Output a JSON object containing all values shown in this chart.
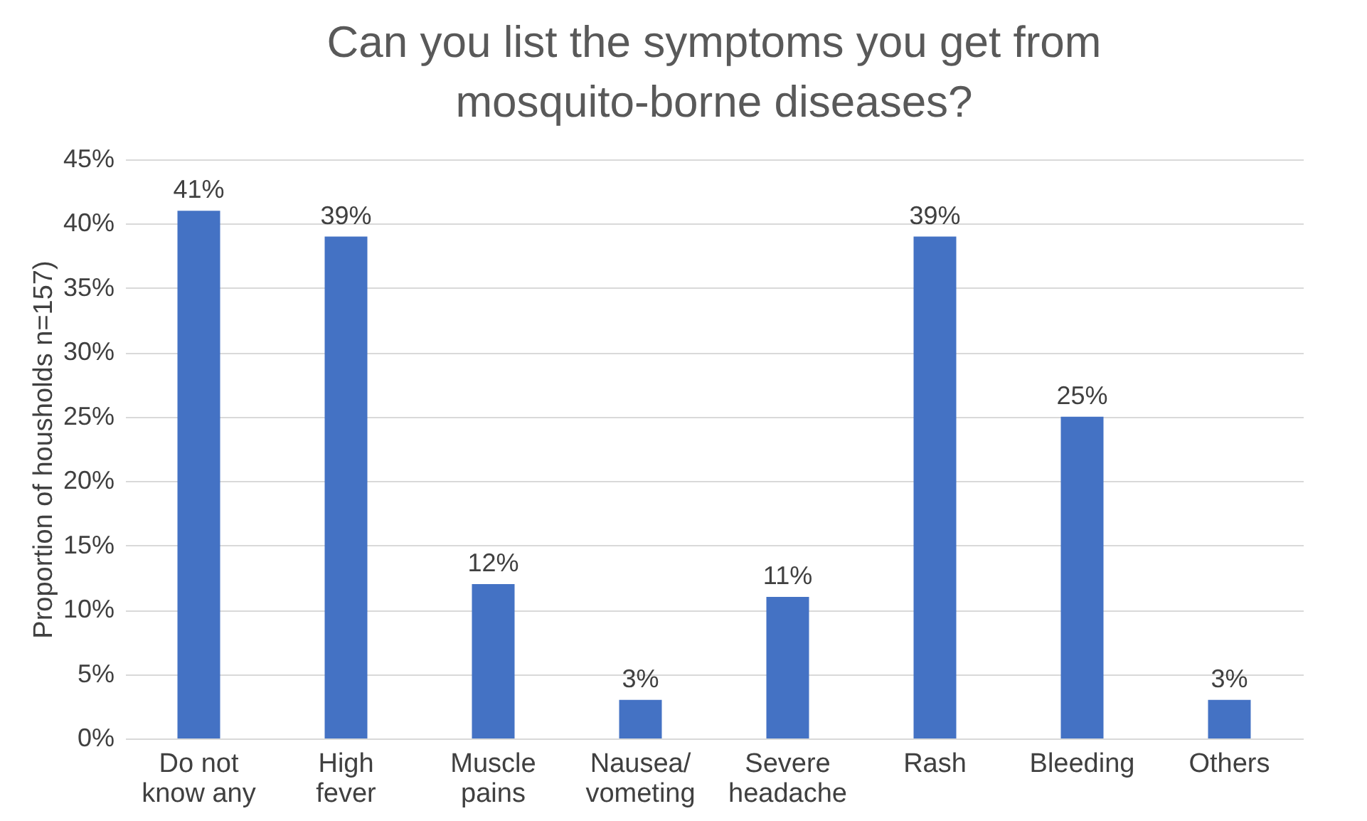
{
  "chart_data": {
    "type": "bar",
    "title": "Can you list the symptoms you get from mosquito-borne diseases?",
    "ylabel": "Proportion of housholds n=157)",
    "categories": [
      "Do not know any",
      "High fever",
      "Muscle pains",
      "Nausea/ vometing",
      "Severe headache",
      "Rash",
      "Bleeding",
      "Others"
    ],
    "values": [
      41,
      39,
      12,
      3,
      11,
      39,
      25,
      3
    ],
    "value_labels": [
      "41%",
      "39%",
      "12%",
      "3%",
      "11%",
      "39%",
      "25%",
      "3%"
    ],
    "color": "#4472c4",
    "ylim": [
      0,
      45
    ],
    "yticks": [
      {
        "value": 0,
        "label": "0%"
      },
      {
        "value": 5,
        "label": "5%"
      },
      {
        "value": 10,
        "label": "10%"
      },
      {
        "value": 15,
        "label": "15%"
      },
      {
        "value": 20,
        "label": "20%"
      },
      {
        "value": 25,
        "label": "25%"
      },
      {
        "value": 30,
        "label": "30%"
      },
      {
        "value": 35,
        "label": "35%"
      },
      {
        "value": 40,
        "label": "40%"
      },
      {
        "value": 45,
        "label": "45%"
      }
    ],
    "grid": "y"
  }
}
